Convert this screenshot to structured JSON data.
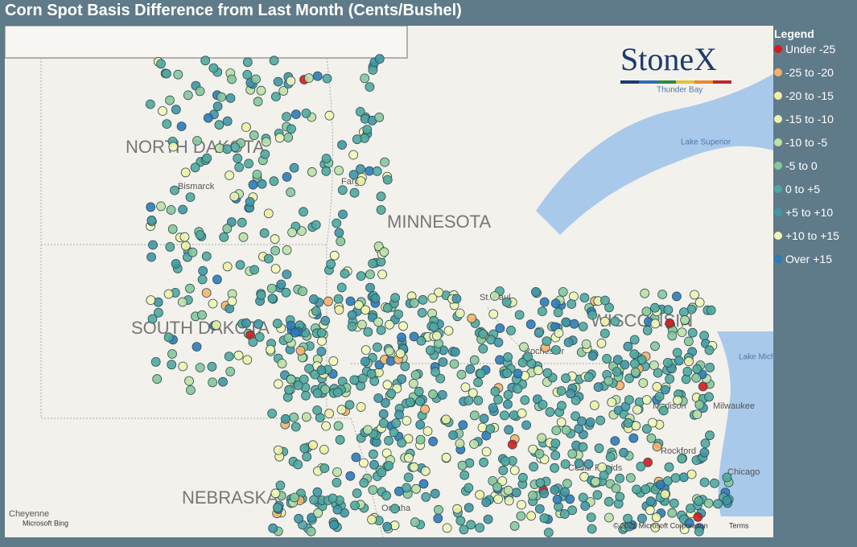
{
  "header": {
    "title": "Corn Spot Basis Difference from Last Month (Cents/Bushel)"
  },
  "logo": {
    "text": "StoneX"
  },
  "legend": {
    "title": "Legend",
    "items": [
      {
        "label": "Under -25",
        "color": "#d7191c"
      },
      {
        "label": "-25 to -20",
        "color": "#f6b26b"
      },
      {
        "label": "-20 to -15",
        "color": "#f3f0a4"
      },
      {
        "label": "-15 to -10",
        "color": "#eef5b4"
      },
      {
        "label": "-10 to -5",
        "color": "#bfe0a6"
      },
      {
        "label": "-5 to 0",
        "color": "#86c79b"
      },
      {
        "label": "0 to +5",
        "color": "#4fa8a0"
      },
      {
        "label": "+5 to +10",
        "color": "#3f96a6"
      },
      {
        "label": "+10 to +15",
        "color": "#f5f7b8"
      },
      {
        "label": "Over +15",
        "color": "#2c7bbb"
      }
    ]
  },
  "map": {
    "labels": [
      "NORTH DAKOTA",
      "MINNESOTA",
      "SOUTH DAKOTA",
      "WISCONSIN",
      "NEBRASKA",
      "Bismarck",
      "Fargo",
      "St. Paul",
      "Rochester",
      "Madison",
      "Milwaukee",
      "Chicago",
      "Rockford",
      "Cedar Rapids",
      "Omaha",
      "Cheyenne",
      "Thunder Bay",
      "Lake Superior",
      "Lake Michigan"
    ],
    "attribution": {
      "bing": "Microsoft Bing",
      "copyright": "© 2021 Microsoft Corporation",
      "terms": "Terms"
    }
  }
}
